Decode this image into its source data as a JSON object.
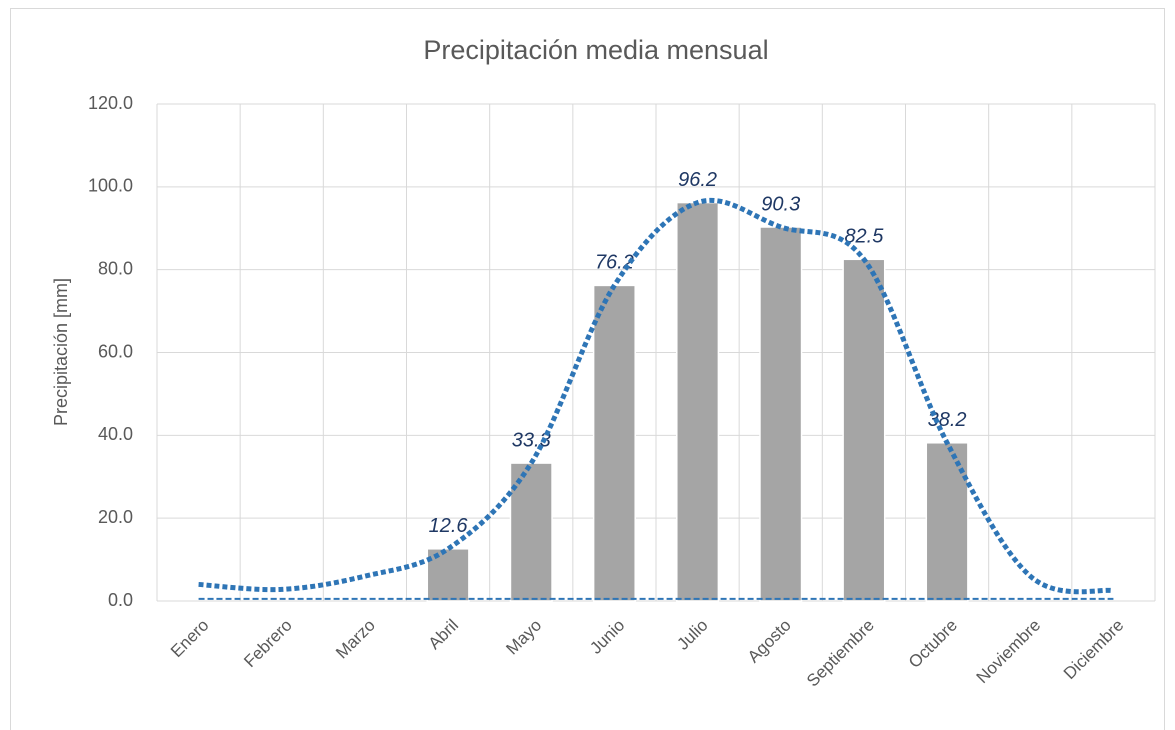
{
  "chart_data": {
    "type": "bar",
    "title": "Precipitación media mensual",
    "y_label": "Precipitación [mm]",
    "categories": [
      "Enero",
      "Febrero",
      "Marzo",
      "Abril",
      "Mayo",
      "Junio",
      "Julio",
      "Agosto",
      "Septiembre",
      "Octubre",
      "Noviembre",
      "Diciembre"
    ],
    "series": [
      {
        "type": "bar",
        "color": "#a5a5a5",
        "values": [
          null,
          null,
          null,
          12.6,
          33.3,
          76.2,
          96.2,
          90.3,
          82.5,
          38.2,
          null,
          null
        ]
      },
      {
        "type": "line",
        "style": "dotted",
        "color": "#2e75b6",
        "values": [
          4.0,
          2.8,
          6.0,
          12.6,
          33.3,
          76.2,
          96.2,
          90.3,
          82.5,
          38.2,
          6.0,
          2.5
        ]
      },
      {
        "type": "line",
        "style": "dashed",
        "color": "#2e75b6",
        "values": [
          0.5,
          0.5,
          0.5,
          0.5,
          0.5,
          0.5,
          0.5,
          0.5,
          0.5,
          0.5,
          0.5,
          0.5
        ]
      }
    ],
    "ylim": [
      0,
      120
    ],
    "yticks": [
      {
        "value": 0,
        "label": "0.0"
      },
      {
        "value": 20,
        "label": "20.0"
      },
      {
        "value": 40,
        "label": "40.0"
      },
      {
        "value": 60,
        "label": "60.0"
      },
      {
        "value": 80,
        "label": "80.0"
      },
      {
        "value": 100,
        "label": "100.0"
      },
      {
        "value": 120,
        "label": "120.0"
      }
    ],
    "grid": true
  }
}
